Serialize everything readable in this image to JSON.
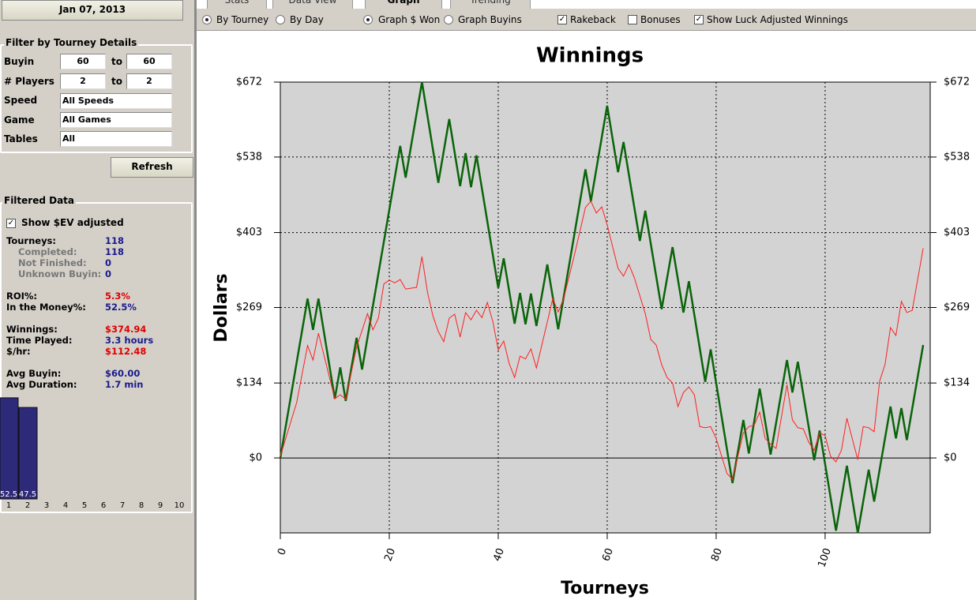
{
  "sidebar": {
    "date": "Jan 07, 2013",
    "filter_title": "Filter by Tourney Details",
    "filters": [
      {
        "label": "Buyin",
        "from": "60",
        "sep": "to",
        "to": "60"
      },
      {
        "label": "# Players",
        "from": "2",
        "sep": "to",
        "to": "2"
      },
      {
        "label": "Speed",
        "value": "All Speeds"
      },
      {
        "label": "Game",
        "value": "All Games"
      },
      {
        "label": "Tables",
        "value": "All"
      }
    ],
    "refresh": "Refresh",
    "filtered_title": "Filtered Data",
    "ev_checkbox": "Show $EV adjusted",
    "stats": [
      {
        "label": "Tourneys:",
        "value": "118"
      },
      {
        "label": "Completed:",
        "value": "118"
      },
      {
        "label": "Not Finished:",
        "value": "0"
      },
      {
        "label": "Unknown Buyin:",
        "value": "0"
      },
      {
        "label": "ROI%:",
        "value": "5.3%"
      },
      {
        "label": "In the Money%:",
        "value": "52.5%"
      },
      {
        "label": "Winnings:",
        "value": "$374.94"
      },
      {
        "label": "Time Played:",
        "value": "3.3 hours"
      },
      {
        "label": "$/hr:",
        "value": "$112.48"
      },
      {
        "label": "Avg Buyin:",
        "value": "$60.00"
      },
      {
        "label": "Avg Duration:",
        "value": "1.7 min"
      }
    ]
  },
  "tabs": [
    "Stats",
    "Data View",
    "Graph",
    "Trending"
  ],
  "toolbar": [
    "By Tourney",
    "By Day",
    "Graph $ Won",
    "Graph Buyins",
    "Rakeback",
    "Bonuses",
    "Show Luck Adjusted Winnings"
  ],
  "chart_data": [
    {
      "type": "line",
      "title": "Winnings",
      "y_label": "Dollars",
      "x_label": "Tourneys",
      "xlim": [
        0,
        119
      ],
      "xticks": [
        0,
        20,
        40,
        60,
        80,
        100
      ],
      "ylim": [
        -134,
        672
      ],
      "yticks": [
        {
          "value": 0,
          "label": "$0"
        },
        {
          "value": 134,
          "label": "$134"
        },
        {
          "value": 269,
          "label": "$269"
        },
        {
          "value": 403,
          "label": "$403"
        },
        {
          "value": 538,
          "label": "$538"
        },
        {
          "value": 672,
          "label": "$672"
        }
      ],
      "grid": true,
      "series": [
        {
          "color": "#0a640a",
          "x": [
            0,
            5,
            6,
            7,
            10,
            11,
            12,
            14,
            15,
            22,
            23,
            26,
            29,
            31,
            33,
            34,
            35,
            36,
            40,
            41,
            43,
            44,
            45,
            46,
            47,
            49,
            51,
            56,
            57,
            60,
            62,
            63,
            66,
            67,
            70,
            72,
            74,
            75,
            78,
            79,
            83,
            85,
            86,
            88,
            90,
            93,
            94,
            95,
            98,
            99,
            102,
            104,
            106,
            108,
            109,
            112,
            113,
            114,
            115,
            118
          ],
          "values": [
            0,
            285,
            229,
            285,
            106,
            162,
            102,
            215,
            158,
            558,
            501,
            672,
            492,
            606,
            486,
            545,
            484,
            541,
            304,
            357,
            240,
            295,
            239,
            294,
            236,
            346,
            230,
            516,
            459,
            630,
            511,
            565,
            388,
            442,
            266,
            377,
            260,
            316,
            136,
            194,
            -45,
            68,
            8,
            124,
            6,
            175,
            117,
            172,
            -4,
            49,
            -130,
            -14,
            -134,
            -21,
            -78,
            92,
            35,
            89,
            32,
            202
          ]
        },
        {
          "color": "#ff2020",
          "x": [
            0,
            3,
            5,
            6,
            7,
            10,
            11,
            12,
            14,
            16,
            17,
            18,
            19,
            20,
            21,
            22,
            23,
            25,
            26,
            27,
            28,
            29,
            30,
            31,
            32,
            33,
            34,
            35,
            36,
            37,
            38,
            39,
            40,
            41,
            42,
            43,
            44,
            45,
            46,
            47,
            49,
            50,
            51,
            52,
            54,
            56,
            57,
            58,
            59,
            60,
            62,
            63,
            64,
            65,
            67,
            68,
            69,
            70,
            71,
            72,
            73,
            74,
            75,
            76,
            77,
            78,
            79,
            80,
            82,
            83,
            85,
            86,
            87,
            88,
            89,
            90,
            91,
            93,
            94,
            95,
            96,
            97,
            98,
            99,
            100,
            101,
            102,
            103,
            104,
            106,
            107,
            108,
            109,
            110,
            111,
            112,
            113,
            114,
            115,
            116,
            118
          ],
          "values": [
            3,
            99,
            201,
            175,
            223,
            106,
            113,
            105,
            198,
            258,
            229,
            250,
            311,
            318,
            313,
            319,
            302,
            305,
            360,
            297,
            254,
            226,
            208,
            250,
            257,
            216,
            260,
            247,
            264,
            251,
            278,
            244,
            193,
            209,
            169,
            144,
            182,
            177,
            195,
            161,
            243,
            285,
            261,
            285,
            364,
            448,
            459,
            438,
            449,
            417,
            339,
            325,
            346,
            322,
            258,
            212,
            202,
            167,
            144,
            134,
            92,
            117,
            127,
            113,
            56,
            54,
            56,
            35,
            -28,
            -38,
            45,
            56,
            59,
            82,
            35,
            25,
            17,
            131,
            68,
            54,
            52,
            28,
            14,
            45,
            40,
            3,
            -7,
            14,
            71,
            -3,
            56,
            54,
            47,
            137,
            167,
            233,
            219,
            280,
            260,
            264,
            375
          ]
        }
      ]
    },
    {
      "type": "bar",
      "categories": [
        "1",
        "2",
        "3",
        "4",
        "5",
        "6",
        "7",
        "8",
        "9",
        "10"
      ],
      "values": [
        52.5,
        47.5,
        null,
        null,
        null,
        null,
        null,
        null,
        null,
        null
      ],
      "color": "#2e2a7a"
    }
  ]
}
